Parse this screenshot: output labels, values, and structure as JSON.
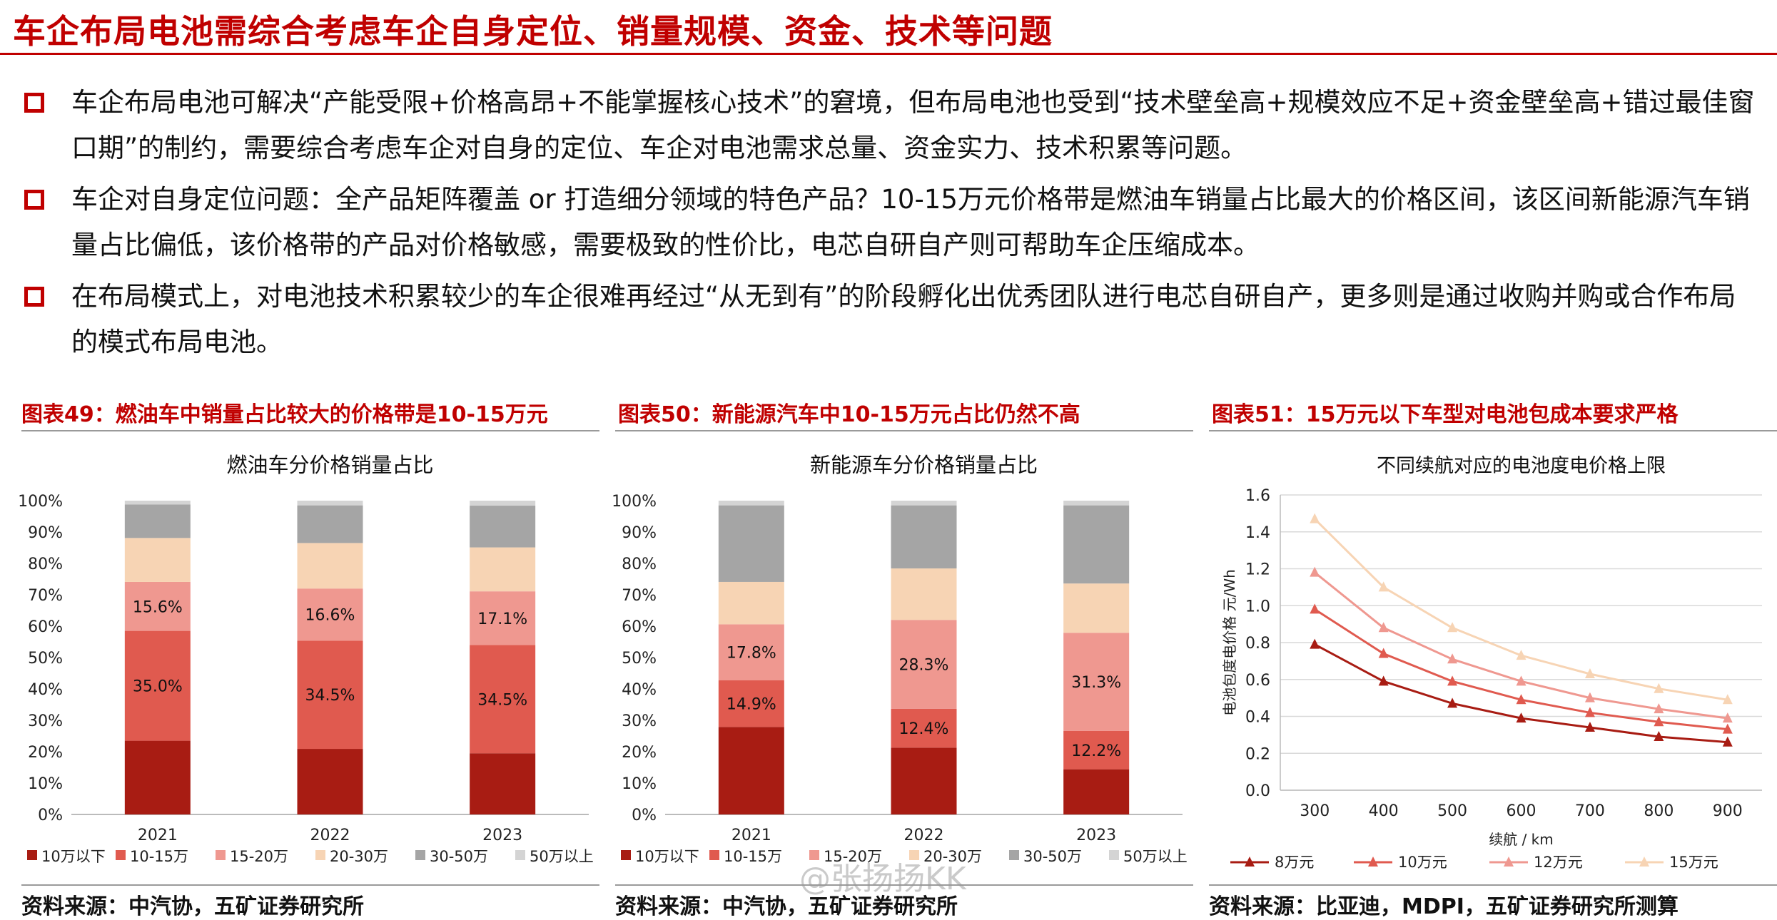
{
  "page": {
    "title": "车企布局电池需综合考虑车企自身定位、销量规模、资金、技术等问题",
    "bullets": [
      "车企布局电池可解决“产能受限+价格高昂+不能掌握核心技术”的窘境，但布局电池也受到“技术壁垒高+规模效应不足+资金壁垒高+错过最佳窗口期”的制约，需要综合考虑车企对自身的定位、车企对电池需求总量、资金实力、技术积累等问题。",
      "车企对自身定位问题：全产品矩阵覆盖 or 打造细分领域的特色产品？10-15万元价格带是燃油车销量占比最大的价格区间，该区间新能源汽车销量占比偏低，该价格带的产品对价格敏感，需要极致的性价比，电芯自研自产则可帮助车企压缩成本。",
      "在布局模式上，对电池技术积累较少的车企很难再经过“从无到有”的阶段孵化出优秀团队进行电芯自研自产，更多则是通过收购并购或合作布局的模式布局电池。"
    ]
  },
  "figures": [
    {
      "label": "图表49：燃油车中销量占比较大的价格带是10-15万元",
      "source": "资料来源：中汽协，五矿证券研究所"
    },
    {
      "label": "图表50：新能源汽车中10-15万元占比仍然不高",
      "source": "资料来源：中汽协，五矿证券研究所"
    },
    {
      "label": "图表51：15万元以下车型对电池包成本要求严格",
      "source": "资料来源：比亚迪，MDPI，五矿证券研究所测算"
    }
  ],
  "watermark": "@张扬扬KK",
  "chart_data": [
    {
      "type": "bar",
      "stacked": true,
      "title": "燃油车分价格销量占比",
      "categories": [
        "2021",
        "2022",
        "2023"
      ],
      "ylim": [
        0,
        100
      ],
      "yticks": [
        "0%",
        "10%",
        "20%",
        "30%",
        "40%",
        "50%",
        "60%",
        "70%",
        "80%",
        "90%",
        "100%"
      ],
      "legend_position": "bottom",
      "series": [
        {
          "name": "10万以下",
          "color": "#a81c13",
          "values": [
            23.5,
            20.9,
            19.5
          ]
        },
        {
          "name": "10-15万",
          "color": "#e05a4f",
          "values": [
            35.0,
            34.5,
            34.5
          ],
          "labels": [
            "35.0%",
            "34.5%",
            "34.5%"
          ]
        },
        {
          "name": "15-20万",
          "color": "#ef9890",
          "values": [
            15.6,
            16.6,
            17.1
          ],
          "labels": [
            "15.6%",
            "16.6%",
            "17.1%"
          ]
        },
        {
          "name": "20-30万",
          "color": "#f7d4b4",
          "values": [
            14.0,
            14.5,
            14.0
          ]
        },
        {
          "name": "30-50万",
          "color": "#a5a5a5",
          "values": [
            10.7,
            12.0,
            13.3
          ]
        },
        {
          "name": "50万以上",
          "color": "#d4d4d4",
          "values": [
            1.2,
            1.5,
            1.6
          ]
        }
      ]
    },
    {
      "type": "bar",
      "stacked": true,
      "title": "新能源车分价格销量占比",
      "categories": [
        "2021",
        "2022",
        "2023"
      ],
      "ylim": [
        0,
        100
      ],
      "yticks": [
        "0%",
        "10%",
        "20%",
        "30%",
        "40%",
        "50%",
        "60%",
        "70%",
        "80%",
        "90%",
        "100%"
      ],
      "legend_position": "bottom",
      "series": [
        {
          "name": "10万以下",
          "color": "#a81c13",
          "values": [
            27.9,
            21.3,
            14.4
          ]
        },
        {
          "name": "10-15万",
          "color": "#e05a4f",
          "values": [
            14.9,
            12.4,
            12.2
          ],
          "labels": [
            "14.9%",
            "12.4%",
            "12.2%"
          ]
        },
        {
          "name": "15-20万",
          "color": "#ef9890",
          "values": [
            17.8,
            28.3,
            31.3
          ],
          "labels": [
            "17.8%",
            "28.3%",
            "31.3%"
          ]
        },
        {
          "name": "20-30万",
          "color": "#f7d4b4",
          "values": [
            13.5,
            16.4,
            15.7
          ]
        },
        {
          "name": "30-50万",
          "color": "#a5a5a5",
          "values": [
            24.4,
            20.1,
            24.9
          ]
        },
        {
          "name": "50万以上",
          "color": "#d4d4d4",
          "values": [
            1.5,
            1.5,
            1.5
          ]
        }
      ]
    },
    {
      "type": "line",
      "title": "不同续航对应的电池度电价格上限",
      "xlabel": "续航 / km",
      "ylabel": "电池包度电价格 元/Wh",
      "x": [
        300,
        400,
        500,
        600,
        700,
        800,
        900
      ],
      "ylim": [
        0,
        1.6
      ],
      "yticks": [
        "0.0",
        "0.2",
        "0.4",
        "0.6",
        "0.8",
        "1.0",
        "1.2",
        "1.4",
        "1.6"
      ],
      "grid": true,
      "legend_position": "bottom",
      "series": [
        {
          "name": "8万元",
          "color": "#a81c13",
          "values": [
            0.79,
            0.59,
            0.47,
            0.39,
            0.34,
            0.29,
            0.26
          ]
        },
        {
          "name": "10万元",
          "color": "#e05a4f",
          "values": [
            0.98,
            0.74,
            0.59,
            0.49,
            0.42,
            0.37,
            0.33
          ]
        },
        {
          "name": "12万元",
          "color": "#ef9890",
          "values": [
            1.18,
            0.88,
            0.71,
            0.59,
            0.5,
            0.44,
            0.39
          ]
        },
        {
          "name": "15万元",
          "color": "#f7d4b4",
          "values": [
            1.47,
            1.1,
            0.88,
            0.73,
            0.63,
            0.55,
            0.49
          ]
        }
      ]
    }
  ]
}
